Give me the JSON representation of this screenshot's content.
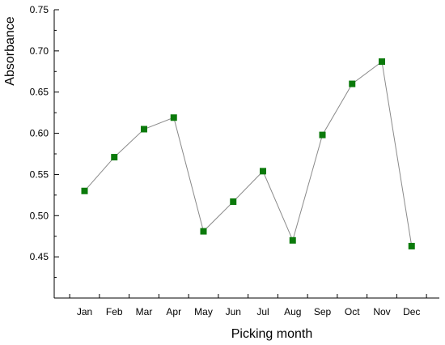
{
  "chart_data": {
    "type": "line",
    "title": "",
    "xlabel": "Picking month",
    "ylabel": "Absorbance",
    "categories": [
      "Jan",
      "Feb",
      "Mar",
      "Apr",
      "May",
      "Jun",
      "Jul",
      "Aug",
      "Sep",
      "Oct",
      "Nov",
      "Dec"
    ],
    "series": [
      {
        "values": [
          0.53,
          0.571,
          0.605,
          0.619,
          0.481,
          0.517,
          0.554,
          0.47,
          0.598,
          0.66,
          0.687,
          0.463
        ]
      }
    ],
    "ylim": [
      0.4,
      0.75
    ],
    "yticks": [
      "0.45",
      "0.50",
      "0.55",
      "0.60",
      "0.65",
      "0.70",
      "0.75"
    ],
    "grid": false,
    "colors": {
      "marker": "#0b7a0b",
      "line": "#8a8a8a",
      "axis": "#000000"
    }
  }
}
